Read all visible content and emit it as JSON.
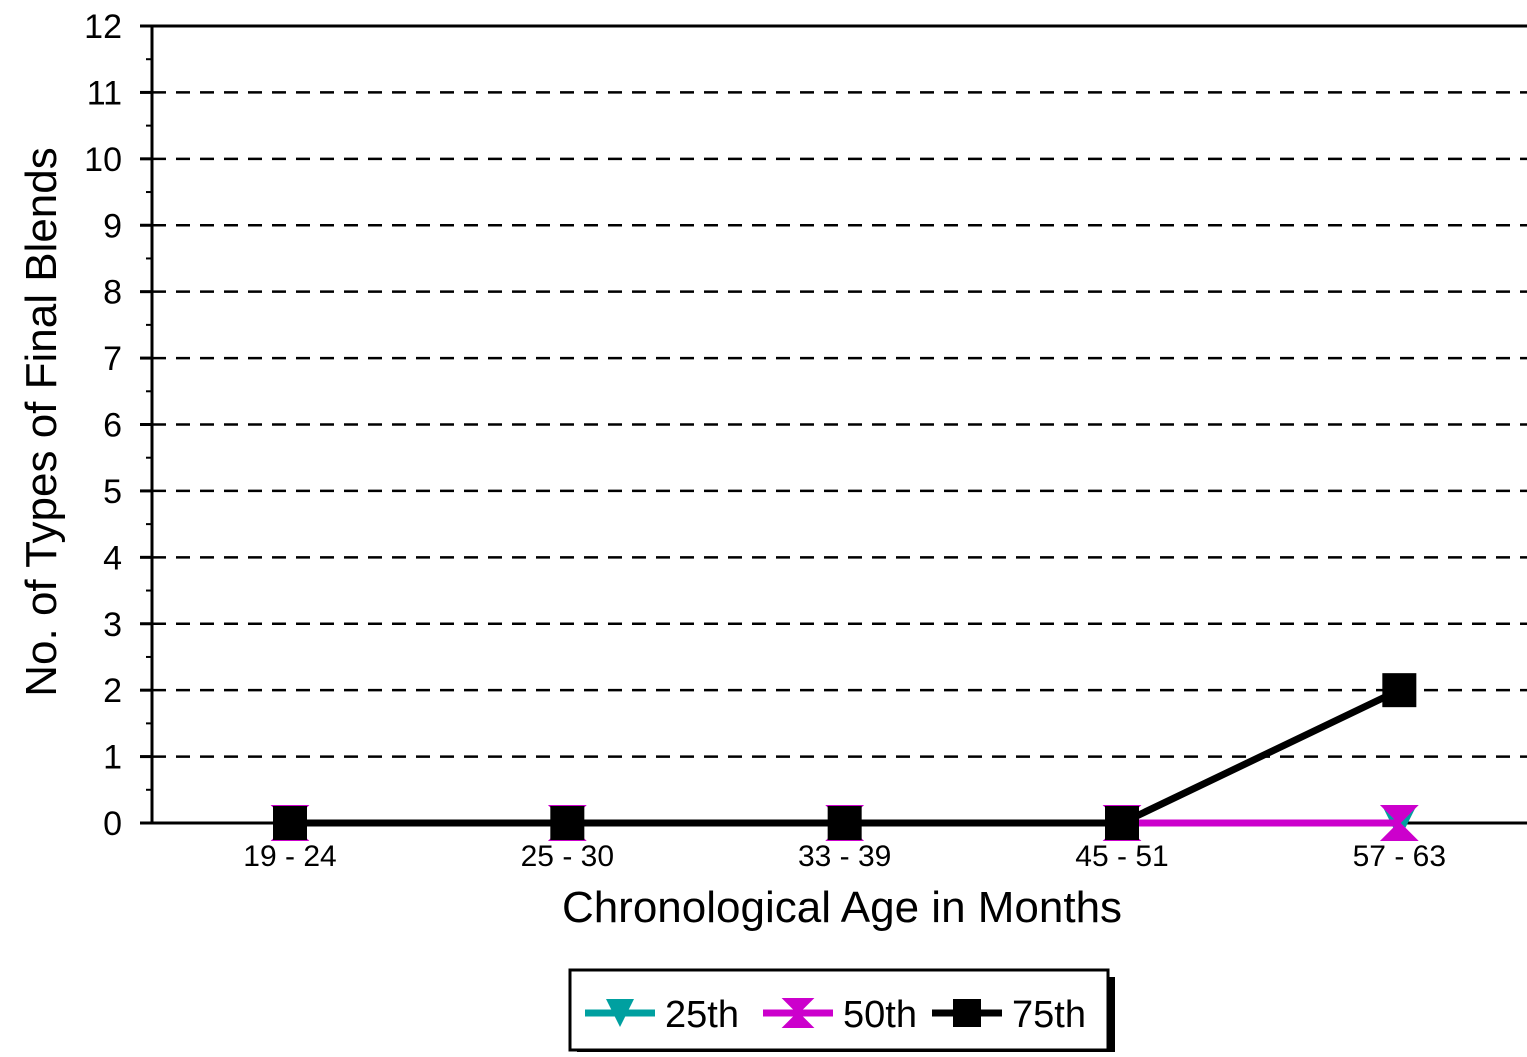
{
  "chart_data": {
    "type": "line",
    "title": "",
    "xlabel": "Chronological Age in Months",
    "ylabel": "No. of Types of Final Blends",
    "categories": [
      "19 - 24",
      "25 - 30",
      "33 - 39",
      "45 - 51",
      "57 - 63"
    ],
    "ylim": [
      0,
      12
    ],
    "yticks": [
      0,
      1,
      2,
      3,
      4,
      5,
      6,
      7,
      8,
      9,
      10,
      11,
      12
    ],
    "grid": "dashed horizontal",
    "legend_position": "bottom-center",
    "series": [
      {
        "name": "25th",
        "values": [
          0,
          0,
          0,
          0,
          0
        ],
        "color": "#00a0a0",
        "marker": "triangle-down"
      },
      {
        "name": "50th",
        "values": [
          0,
          0,
          0,
          0,
          0
        ],
        "color": "#cc00cc",
        "marker": "bowtie"
      },
      {
        "name": "75th",
        "values": [
          0,
          0,
          0,
          0,
          2
        ],
        "color": "#000000",
        "marker": "square"
      }
    ]
  }
}
